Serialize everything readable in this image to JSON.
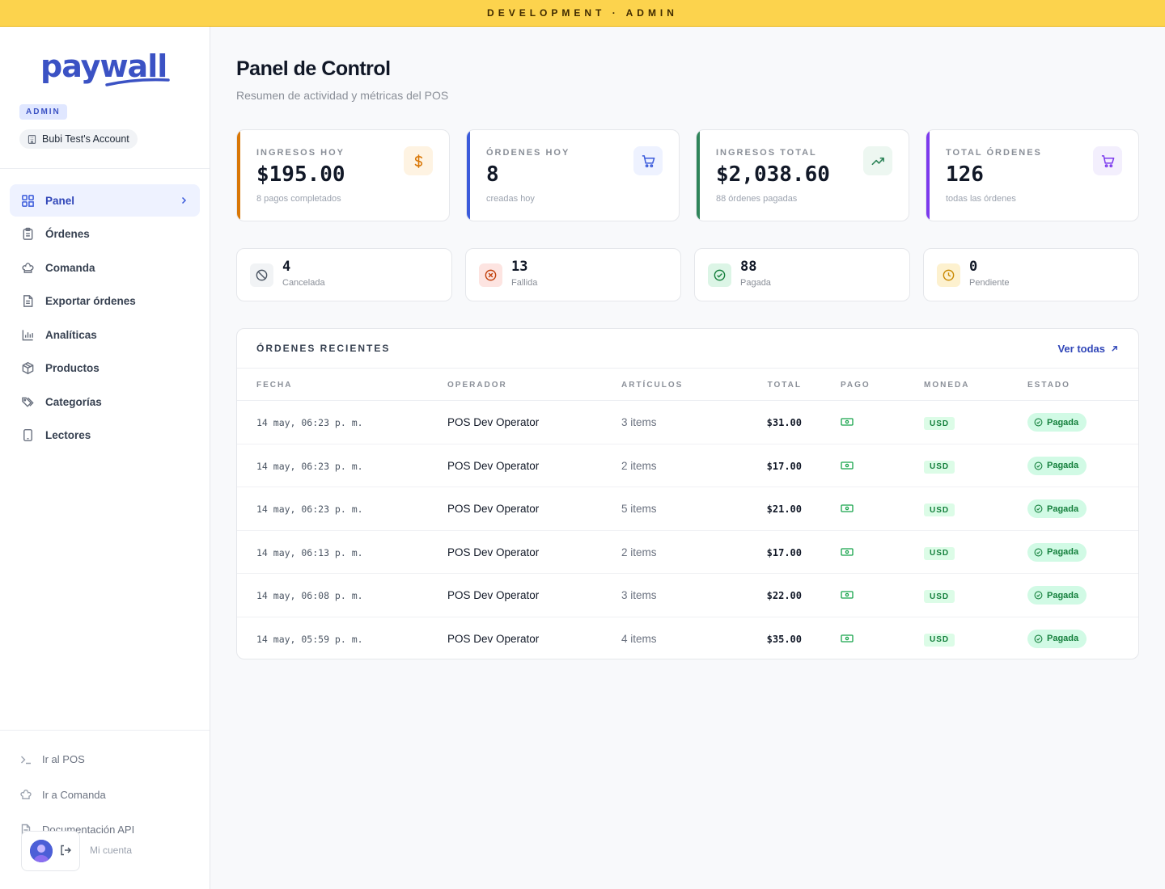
{
  "banner": {
    "text": "DEVELOPMENT · ADMIN"
  },
  "brand": {
    "logo_text": "paywall",
    "role": "ADMIN",
    "account": "Bubi Test's Account",
    "primary_color": "#3b52c4"
  },
  "sidebar": {
    "items": [
      {
        "label": "Panel",
        "icon": "dashboard-icon",
        "active": true
      },
      {
        "label": "Órdenes",
        "icon": "clipboard-icon"
      },
      {
        "label": "Comanda",
        "icon": "chef-hat-icon"
      },
      {
        "label": "Exportar órdenes",
        "icon": "file-export-icon"
      },
      {
        "label": "Analíticas",
        "icon": "bar-chart-icon"
      },
      {
        "label": "Productos",
        "icon": "package-icon"
      },
      {
        "label": "Categorías",
        "icon": "tags-icon"
      },
      {
        "label": "Lectores",
        "icon": "tablet-icon"
      }
    ],
    "bottom_links": [
      {
        "label": "Ir al POS",
        "icon": "terminal-icon"
      },
      {
        "label": "Ir a Comanda",
        "icon": "chef-hat-icon"
      },
      {
        "label": "Documentación API",
        "icon": "document-icon"
      }
    ],
    "account_label": "Mi cuenta"
  },
  "header": {
    "title": "Panel de Control",
    "subtitle": "Resumen de actividad y métricas del POS"
  },
  "kpis": [
    {
      "label": "INGRESOS HOY",
      "value": "$195.00",
      "note": "8 pagos completados",
      "accent": "#d97706",
      "icon": "dollar-icon"
    },
    {
      "label": "ÓRDENES HOY",
      "value": "8",
      "note": "creadas hoy",
      "accent": "#3b5bdb",
      "icon": "cart-icon"
    },
    {
      "label": "INGRESOS TOTAL",
      "value": "$2,038.60",
      "note": "88 órdenes pagadas",
      "accent": "#2f855a",
      "icon": "trending-up-icon"
    },
    {
      "label": "TOTAL ÓRDENES",
      "value": "126",
      "note": "todas las órdenes",
      "accent": "#7c3aed",
      "icon": "cart-icon"
    }
  ],
  "status_counts": [
    {
      "count": "4",
      "label": "Cancelada",
      "icon": "ban-icon"
    },
    {
      "count": "13",
      "label": "Fallida",
      "icon": "x-circle-icon"
    },
    {
      "count": "88",
      "label": "Pagada",
      "icon": "check-circle-icon"
    },
    {
      "count": "0",
      "label": "Pendiente",
      "icon": "clock-icon"
    }
  ],
  "orders": {
    "title": "ÓRDENES RECIENTES",
    "view_all": "Ver todas",
    "columns": {
      "date": "FECHA",
      "operator": "OPERADOR",
      "items": "ARTÍCULOS",
      "total": "TOTAL",
      "payment": "PAGO",
      "currency": "MONEDA",
      "status": "ESTADO"
    },
    "rows": [
      {
        "date": "14 may, 06:23 p. m.",
        "operator": "POS Dev Operator",
        "items": "3 items",
        "total": "$31.00",
        "payment": "cash-icon",
        "currency": "USD",
        "status": "Pagada"
      },
      {
        "date": "14 may, 06:23 p. m.",
        "operator": "POS Dev Operator",
        "items": "2 items",
        "total": "$17.00",
        "payment": "cash-icon",
        "currency": "USD",
        "status": "Pagada"
      },
      {
        "date": "14 may, 06:23 p. m.",
        "operator": "POS Dev Operator",
        "items": "5 items",
        "total": "$21.00",
        "payment": "cash-icon",
        "currency": "USD",
        "status": "Pagada"
      },
      {
        "date": "14 may, 06:13 p. m.",
        "operator": "POS Dev Operator",
        "items": "2 items",
        "total": "$17.00",
        "payment": "cash-icon",
        "currency": "USD",
        "status": "Pagada"
      },
      {
        "date": "14 may, 06:08 p. m.",
        "operator": "POS Dev Operator",
        "items": "3 items",
        "total": "$22.00",
        "payment": "cash-icon",
        "currency": "USD",
        "status": "Pagada"
      },
      {
        "date": "14 may, 05:59 p. m.",
        "operator": "POS Dev Operator",
        "items": "4 items",
        "total": "$35.00",
        "payment": "cash-icon",
        "currency": "USD",
        "status": "Pagada"
      }
    ]
  }
}
